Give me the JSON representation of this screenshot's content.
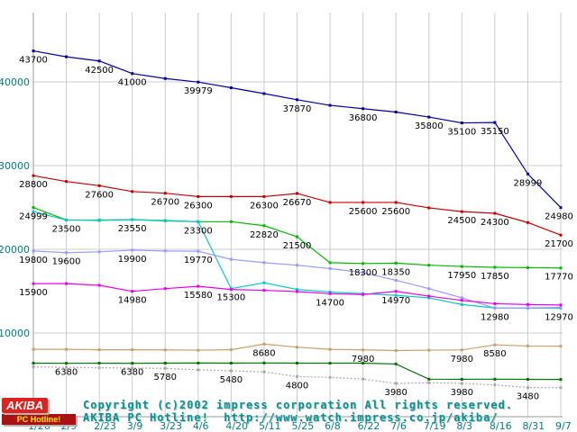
{
  "footer": {
    "logo_line1": "AKIBA",
    "logo_line2": "PC Hotline!",
    "copyright_line1": "Copyright (c)2002 impress corporation All rights reserved.",
    "copyright_line2": "AKIBA PC Hotline!  http://www.watch.impress.co.jp/akiba/"
  },
  "colors": {
    "axis_label": "#008080",
    "grid": "#cccccc",
    "axis_line": "#999999",
    "point_label": "#000000",
    "copyright_text": "#009494",
    "logo_red": "#dd2222",
    "background": "#ffffff"
  },
  "chart_data": {
    "type": "line",
    "title": "",
    "xlabel": "",
    "ylabel": "",
    "legend": "none",
    "grid": true,
    "y_axis": {
      "ticks": [
        0,
        10000,
        20000,
        30000,
        40000
      ],
      "max": 45000
    },
    "categories": [
      "1/26",
      "2/9",
      "2/23",
      "3/9",
      "3/23",
      "4/6",
      "4/20",
      "5/11",
      "5/25",
      "6/8",
      "6/22",
      "7/6",
      "7/19",
      "8/3",
      "8/16",
      "8/31",
      "9/7"
    ],
    "style": {
      "grid_color": "#cccccc",
      "axis_line_color": "#999999",
      "axis_label_color": "#008080",
      "point_label_color": "#000000"
    },
    "series": [
      {
        "name": "dark-blue",
        "color": "#0000aa",
        "values": [
          43700,
          43000,
          42500,
          41000,
          40400,
          39979,
          39300,
          38600,
          37870,
          37200,
          36800,
          36400,
          35800,
          35100,
          35150,
          28999,
          24980
        ],
        "labels": [
          {
            "i": 0,
            "text": "43700"
          },
          {
            "i": 2,
            "text": "42500"
          },
          {
            "i": 3,
            "text": "41000"
          },
          {
            "i": 5,
            "text": "39979"
          },
          {
            "i": 8,
            "text": "37870"
          },
          {
            "i": 10,
            "text": "36800"
          },
          {
            "i": 12,
            "text": "35800"
          },
          {
            "i": 13,
            "text": "35100"
          },
          {
            "i": 14,
            "text": "35150"
          },
          {
            "i": 15,
            "text": "28999"
          },
          {
            "i": 16,
            "text": "24980"
          }
        ]
      },
      {
        "name": "red",
        "color": "#cc0000",
        "values": [
          28800,
          28100,
          27600,
          26900,
          26700,
          26300,
          26300,
          26300,
          26670,
          25600,
          25600,
          25600,
          24950,
          24500,
          24300,
          23200,
          21700
        ],
        "labels": [
          {
            "i": 0,
            "text": "28800"
          },
          {
            "i": 2,
            "text": "27600"
          },
          {
            "i": 4,
            "text": "26700"
          },
          {
            "i": 5,
            "text": "26300"
          },
          {
            "i": 7,
            "text": "26300"
          },
          {
            "i": 8,
            "text": "26670"
          },
          {
            "i": 10,
            "text": "25600"
          },
          {
            "i": 11,
            "text": "25600"
          },
          {
            "i": 13,
            "text": "24500"
          },
          {
            "i": 14,
            "text": "24300"
          },
          {
            "i": 16,
            "text": "21700"
          }
        ]
      },
      {
        "name": "green",
        "color": "#00bb00",
        "values": [
          24999,
          23500,
          23450,
          23550,
          23400,
          23300,
          23300,
          22820,
          21500,
          18400,
          18300,
          18350,
          18100,
          17950,
          17850,
          17800,
          17770
        ],
        "labels": [
          {
            "i": 0,
            "text": "24999"
          },
          {
            "i": 1,
            "text": "23500"
          },
          {
            "i": 3,
            "text": "23550"
          },
          {
            "i": 5,
            "text": "23300"
          },
          {
            "i": 7,
            "text": "22820"
          },
          {
            "i": 8,
            "text": "21500"
          },
          {
            "i": 10,
            "text": "18300"
          },
          {
            "i": 11,
            "text": "18350"
          },
          {
            "i": 13,
            "text": "17950"
          },
          {
            "i": 14,
            "text": "17850"
          },
          {
            "i": 16,
            "text": "17770"
          }
        ]
      },
      {
        "name": "cyan",
        "color": "#00cccc",
        "values": [
          24500,
          23500,
          23500,
          23550,
          23450,
          23300,
          15300,
          16000,
          15200,
          14900,
          14700,
          14500,
          14200,
          13400,
          13000,
          12980,
          12970
        ],
        "labels": [
          {
            "i": 6,
            "text": "15300"
          },
          {
            "i": 16,
            "text": "12970"
          }
        ]
      },
      {
        "name": "lavender",
        "color": "#9999ff",
        "values": [
          19800,
          19600,
          19700,
          19900,
          19800,
          19770,
          18800,
          18400,
          18100,
          17700,
          17200,
          16300,
          15300,
          14200,
          12980,
          13000,
          13050
        ],
        "labels": [
          {
            "i": 0,
            "text": "19800"
          },
          {
            "i": 1,
            "text": "19600"
          },
          {
            "i": 3,
            "text": "19900"
          },
          {
            "i": 5,
            "text": "19770"
          },
          {
            "i": 14,
            "text": "12980"
          }
        ]
      },
      {
        "name": "magenta",
        "color": "#ee00ee",
        "values": [
          15900,
          15900,
          15700,
          14980,
          15300,
          15580,
          15200,
          15100,
          14950,
          14700,
          14600,
          14970,
          14400,
          13900,
          13500,
          13400,
          13350
        ],
        "labels": [
          {
            "i": 0,
            "text": "15900"
          },
          {
            "i": 3,
            "text": "14980"
          },
          {
            "i": 5,
            "text": "15580"
          },
          {
            "i": 9,
            "text": "14700"
          },
          {
            "i": 11,
            "text": "14970"
          }
        ]
      },
      {
        "name": "tan",
        "color": "#c8a068",
        "values": [
          8050,
          8050,
          8000,
          8000,
          7980,
          7950,
          8000,
          8680,
          8300,
          8050,
          7980,
          7900,
          7950,
          7980,
          8580,
          8450,
          8430
        ],
        "labels": [
          {
            "i": 7,
            "text": "8680"
          },
          {
            "i": 10,
            "text": "7980"
          },
          {
            "i": 13,
            "text": "7980"
          },
          {
            "i": 14,
            "text": "8580"
          }
        ]
      },
      {
        "name": "dark-green",
        "color": "#007700",
        "values": [
          6400,
          6380,
          6390,
          6380,
          6400,
          6410,
          6400,
          6420,
          6400,
          6390,
          6400,
          6300,
          4480,
          4470,
          4480,
          4460,
          4450
        ],
        "labels": [
          {
            "i": 1,
            "text": "6380"
          },
          {
            "i": 3,
            "text": "6380"
          }
        ]
      },
      {
        "name": "gray",
        "color": "#aaaaaa",
        "dash": "2,2",
        "values": [
          5950,
          5900,
          5850,
          5800,
          5780,
          5600,
          5480,
          5350,
          4800,
          4700,
          4500,
          3980,
          4050,
          3980,
          3800,
          3480,
          3470
        ],
        "labels": [
          {
            "i": 4,
            "text": "5780"
          },
          {
            "i": 6,
            "text": "5480"
          },
          {
            "i": 8,
            "text": "4800"
          },
          {
            "i": 11,
            "text": "3980"
          },
          {
            "i": 13,
            "text": "3980"
          },
          {
            "i": 15,
            "text": "3480"
          }
        ]
      }
    ]
  }
}
